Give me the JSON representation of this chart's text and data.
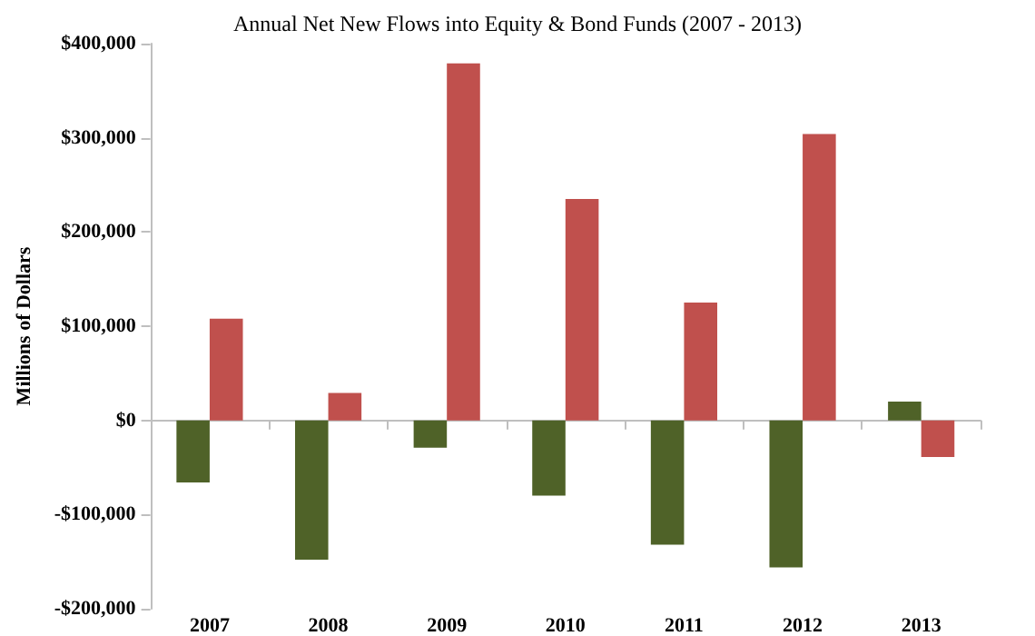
{
  "chart_data": {
    "type": "bar",
    "title": "Annual Net New Flows into Equity & Bond Funds (2007 - 2013)",
    "ylabel": "Millions of Dollars",
    "categories": [
      "2007",
      "2008",
      "2009",
      "2010",
      "2011",
      "2012",
      "2013"
    ],
    "series": [
      {
        "color": "#4f6228",
        "values": [
          -66000,
          -148000,
          -29000,
          -80000,
          -132000,
          -156000,
          20000
        ]
      },
      {
        "color": "#c0504d",
        "values": [
          108000,
          29000,
          379000,
          235000,
          125000,
          304000,
          -39000
        ]
      }
    ],
    "ylim": [
      -200000,
      400000
    ],
    "yticks": [
      {
        "value": -200000,
        "label": "-$200,000"
      },
      {
        "value": -100000,
        "label": "-$100,000"
      },
      {
        "value": 0,
        "label": "$0"
      },
      {
        "value": 100000,
        "label": "$100,000"
      },
      {
        "value": 200000,
        "label": "$200,000"
      },
      {
        "value": 300000,
        "label": "$300,000"
      },
      {
        "value": 400000,
        "label": "$400,000"
      }
    ]
  }
}
